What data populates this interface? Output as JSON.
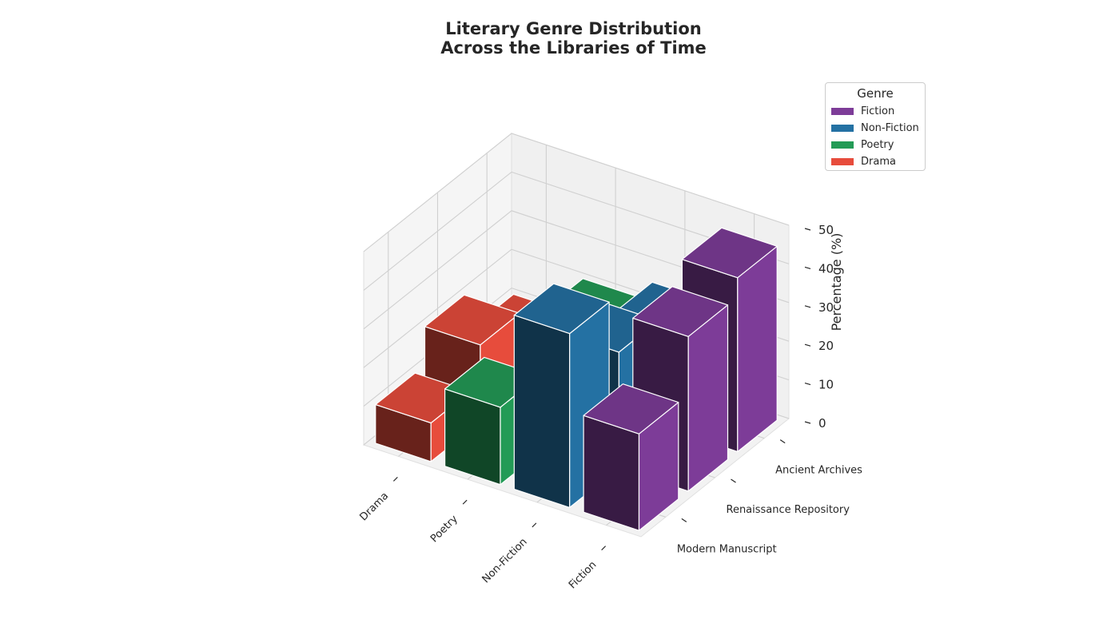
{
  "title_lines": [
    "Literary Genre Distribution",
    "Across the Libraries of Time"
  ],
  "legend": {
    "title": "Genre",
    "items": [
      {
        "label": "Fiction",
        "color": "#7d3c98"
      },
      {
        "label": "Non-Fiction",
        "color": "#2471a3"
      },
      {
        "label": "Poetry",
        "color": "#239b56"
      },
      {
        "label": "Drama",
        "color": "#e74c3c"
      }
    ]
  },
  "chart_data": {
    "type": "bar",
    "subtype": "3d-bar",
    "title": "Literary Genre Distribution\nAcross the Libraries of Time",
    "zlabel": "Percentage (%)",
    "zlim": [
      0,
      50
    ],
    "z_ticks": [
      "0",
      "10",
      "20",
      "30",
      "40",
      "50"
    ],
    "genres": [
      "Drama",
      "Poetry",
      "Non-Fiction",
      "Fiction"
    ],
    "libraries": [
      "Modern Manuscript",
      "Renaissance Repository",
      "Ancient Archives"
    ],
    "series": [
      {
        "name": "Fiction",
        "color": "#7d3c98",
        "values": [
          25,
          40,
          45
        ]
      },
      {
        "name": "Non-Fiction",
        "color": "#2471a3",
        "values": [
          45,
          30,
          25
        ]
      },
      {
        "name": "Poetry",
        "color": "#239b56",
        "values": [
          20,
          10,
          20
        ]
      },
      {
        "name": "Drama",
        "color": "#e74c3c",
        "values": [
          10,
          20,
          10
        ]
      }
    ],
    "grid": true,
    "legend_position": "top-right"
  }
}
